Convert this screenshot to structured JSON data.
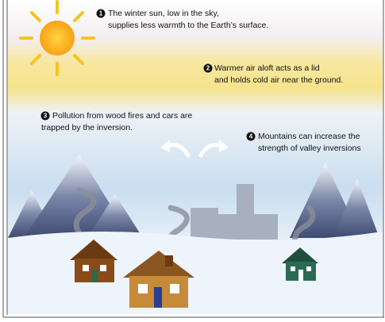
{
  "notes": [
    {
      "number": 1,
      "lines": [
        "The winter sun, low in the sky,",
        "supplies less warmth to the Earth’s surface."
      ]
    },
    {
      "number": 2,
      "lines": [
        "Warmer air aloft acts as a lid",
        "and holds cold air near the ground."
      ]
    },
    {
      "number": 3,
      "lines": [
        "Pollution from wood fires and cars are",
        "trapped by the inversion."
      ]
    },
    {
      "number": 4,
      "lines": [
        "Mountains can increase the",
        "strength of valley inversions"
      ]
    }
  ]
}
